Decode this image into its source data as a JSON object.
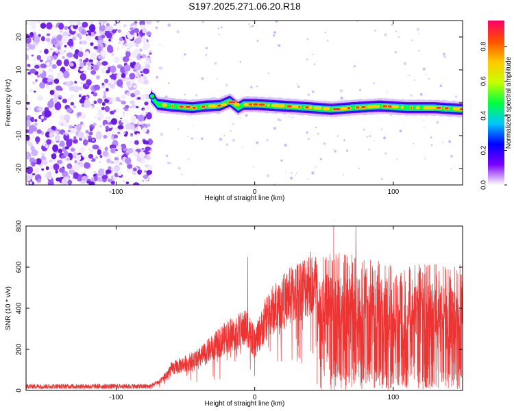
{
  "title": "S197.2025.271.06.20.R18",
  "chart_data": [
    {
      "type": "heatmap",
      "name": "spectrogram",
      "xlabel": "Height of straight line (km)",
      "ylabel": "Frequency (Hz)",
      "xlim": [
        -165,
        150
      ],
      "ylim": [
        -25,
        25
      ],
      "xticks": [
        -100,
        0,
        100
      ],
      "xtick_labels": [
        "-100",
        "0",
        "100"
      ],
      "yticks": [
        -20,
        -10,
        0,
        10,
        20
      ],
      "ytick_labels": [
        "-20",
        "-10",
        "0",
        "10",
        "20"
      ],
      "noise_region_x": [
        -165,
        -75
      ],
      "signal_start_x": -75,
      "signal_track": [
        [
          -75,
          2
        ],
        [
          -70,
          -0.5
        ],
        [
          -60,
          -1
        ],
        [
          -45,
          -1.5
        ],
        [
          -35,
          -1
        ],
        [
          -25,
          -0.8
        ],
        [
          -18,
          0.5
        ],
        [
          -12,
          -1.5
        ],
        [
          -8,
          -0.5
        ],
        [
          0,
          -0.5
        ],
        [
          20,
          -1
        ],
        [
          40,
          -1.5
        ],
        [
          55,
          -2
        ],
        [
          70,
          -1.5
        ],
        [
          90,
          -1
        ],
        [
          110,
          -1.5
        ],
        [
          130,
          -1.5
        ],
        [
          148,
          -2
        ]
      ],
      "colorbar": {
        "label": "Normalized spectral amplitude",
        "range": [
          0,
          0.95
        ],
        "ticks": [
          0.0,
          0.2,
          0.4,
          0.6,
          0.8
        ],
        "tick_labels": [
          "0.0",
          "0.2",
          "0.4",
          "0.6",
          "0.8"
        ],
        "colormap": [
          "#ffffff",
          "#7a00ff",
          "#0000ff",
          "#00c8ff",
          "#00ff40",
          "#c8ff00",
          "#ffc800",
          "#ff5000",
          "#ff0066"
        ]
      }
    },
    {
      "type": "line",
      "name": "snr",
      "xlabel": "Height of straight line (km)",
      "ylabel": "SNR (10 * v/v)",
      "xlim": [
        -165,
        150
      ],
      "ylim": [
        0,
        800
      ],
      "xticks": [
        -100,
        0,
        100
      ],
      "xtick_labels": [
        "-100",
        "0",
        "100"
      ],
      "yticks": [
        0,
        200,
        400,
        600,
        800
      ],
      "ytick_labels": [
        "0",
        "200",
        "400",
        "600",
        "800"
      ],
      "color": "#ee3333",
      "envelope": [
        [
          -165,
          20
        ],
        [
          -75,
          20
        ],
        [
          -68,
          50
        ],
        [
          -60,
          120
        ],
        [
          -40,
          180
        ],
        [
          -20,
          300
        ],
        [
          -5,
          350
        ],
        [
          0,
          260
        ],
        [
          10,
          430
        ],
        [
          25,
          520
        ],
        [
          40,
          600
        ],
        [
          45,
          580
        ],
        [
          60,
          620
        ],
        [
          100,
          560
        ],
        [
          130,
          560
        ],
        [
          150,
          560
        ]
      ],
      "spikes": [
        [
          -5,
          650
        ],
        [
          57,
          800
        ],
        [
          73,
          800
        ]
      ]
    }
  ]
}
